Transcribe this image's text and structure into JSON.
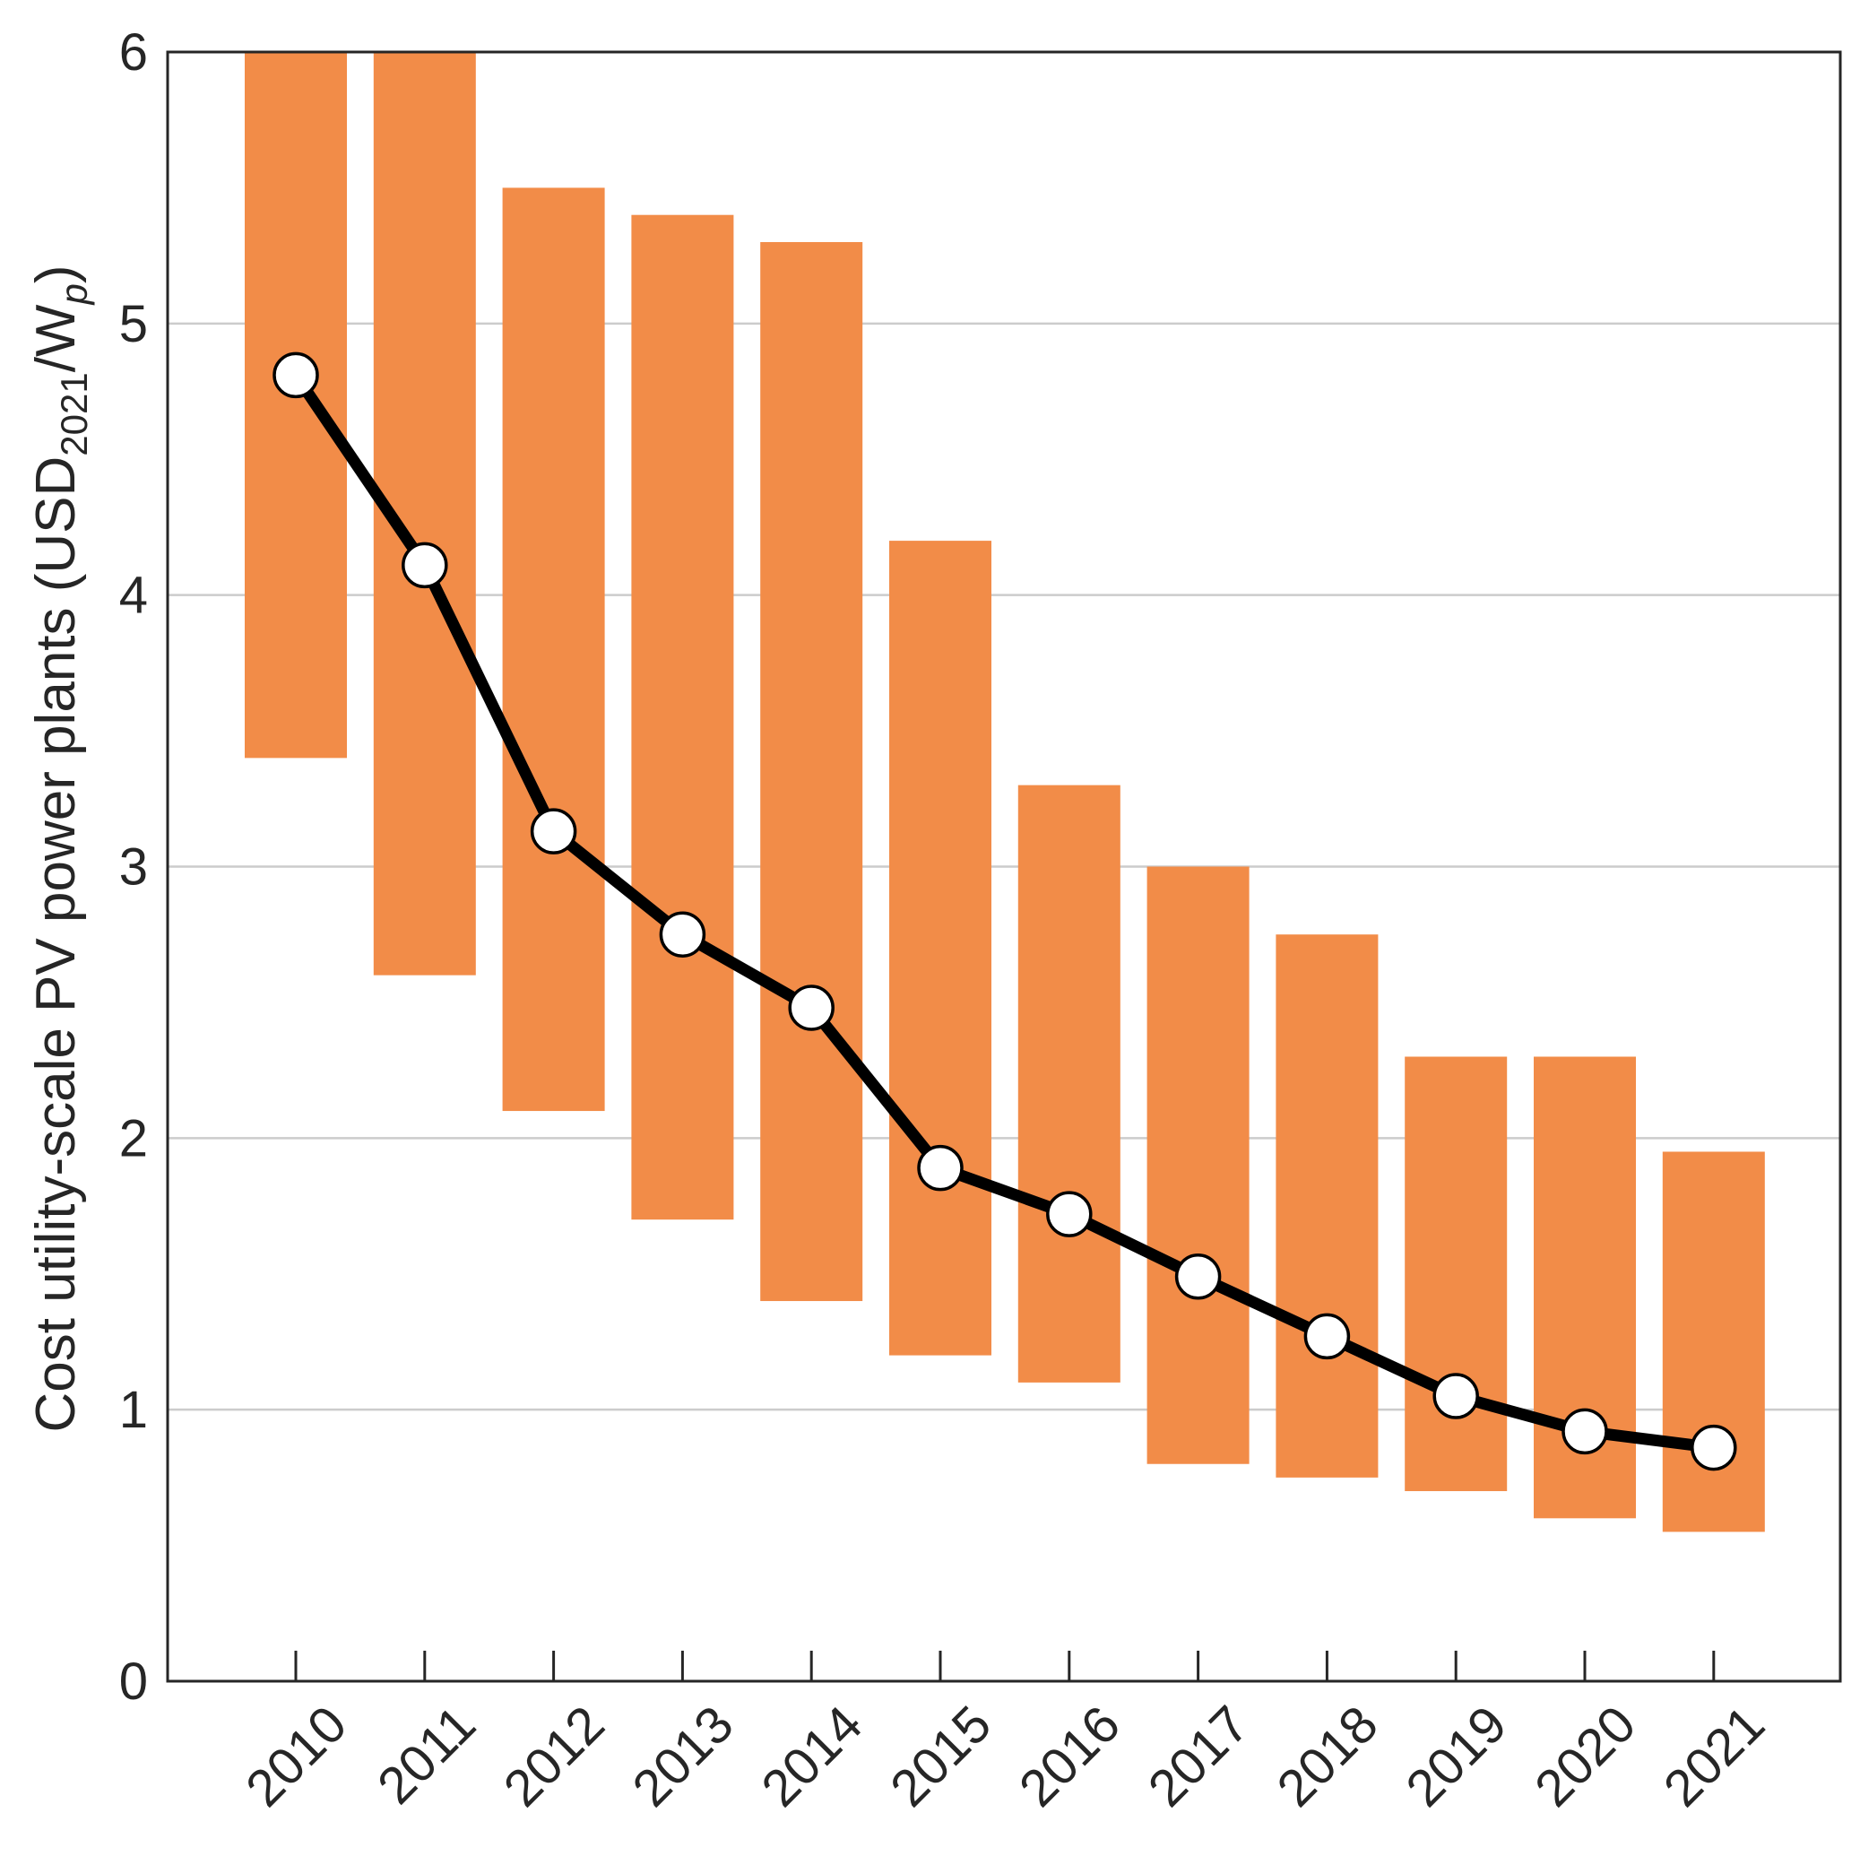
{
  "chart_data": {
    "type": "bar",
    "categories": [
      "2010",
      "2011",
      "2012",
      "2013",
      "2014",
      "2015",
      "2016",
      "2017",
      "2018",
      "2019",
      "2020",
      "2021"
    ],
    "ranges": [
      {
        "low": 3.4,
        "high": 6.0
      },
      {
        "low": 2.6,
        "high": 6.0
      },
      {
        "low": 2.1,
        "high": 5.5
      },
      {
        "low": 1.7,
        "high": 5.4
      },
      {
        "low": 1.4,
        "high": 5.3
      },
      {
        "low": 1.2,
        "high": 4.2
      },
      {
        "low": 1.1,
        "high": 3.3
      },
      {
        "low": 0.8,
        "high": 3.0
      },
      {
        "low": 0.75,
        "high": 2.75
      },
      {
        "low": 0.7,
        "high": 2.3
      },
      {
        "low": 0.6,
        "high": 2.3
      },
      {
        "low": 0.55,
        "high": 1.95
      }
    ],
    "line_values": [
      4.81,
      4.11,
      3.13,
      2.75,
      2.48,
      1.89,
      1.72,
      1.49,
      1.27,
      1.05,
      0.92,
      0.86
    ],
    "ylabel_parts": {
      "main": "Cost utility-scale PV power plants (USD",
      "sub": "2021",
      "mid": "/W",
      "sub2": "p",
      "end": ")"
    },
    "ylim": [
      0,
      6
    ],
    "yticks": [
      "0",
      "1",
      "2",
      "3",
      "4",
      "5",
      "6"
    ],
    "grid": "horizontal",
    "colors": {
      "bar": "#f28c48",
      "line": "#000000",
      "marker_fill": "#ffffff",
      "marker_edge": "#000000",
      "grid": "#cccccc",
      "axes": "#262626",
      "text": "#262626"
    }
  }
}
